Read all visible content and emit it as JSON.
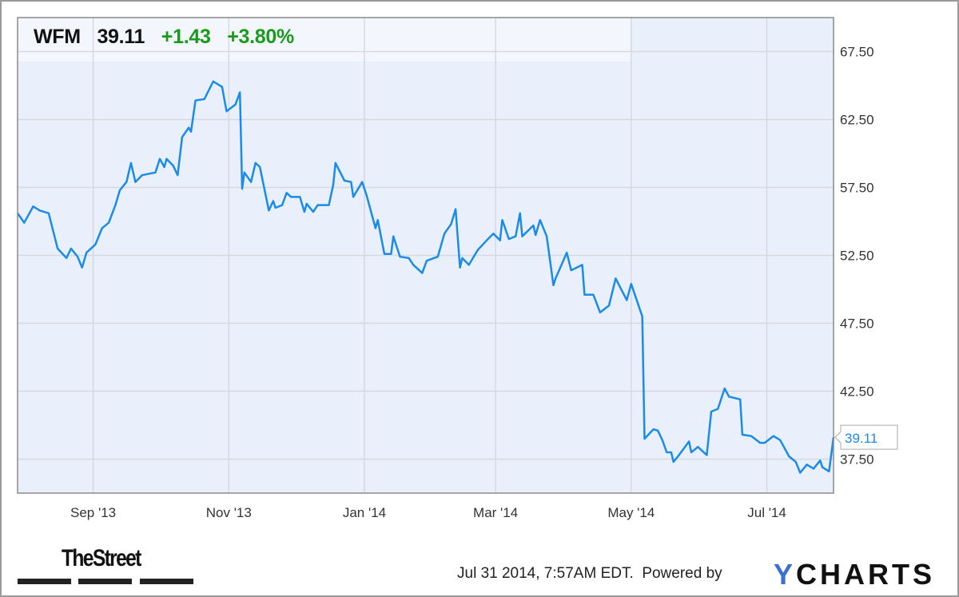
{
  "header": {
    "ticker": "WFM",
    "price": "39.11",
    "change": "+1.43",
    "change_pct": "+3.80%"
  },
  "colors": {
    "line": "#1a8be8",
    "positive": "#1a9a1a",
    "plot_bg": "#e9f0fb",
    "grid": "#d6d9de"
  },
  "chart_data": {
    "type": "line",
    "title": "",
    "xlabel": "",
    "ylabel": "",
    "xlim": [
      "2013-07-29",
      "2014-07-31"
    ],
    "ylim": [
      35,
      70
    ],
    "grid": true,
    "y_axis_side": "right",
    "y_ticks": [
      "37.50",
      "42.50",
      "47.50",
      "52.50",
      "57.50",
      "62.50",
      "67.50"
    ],
    "x_ticks": [
      {
        "date": "2013-09-01",
        "label": "Sep '13"
      },
      {
        "date": "2013-11-01",
        "label": "Nov '13"
      },
      {
        "date": "2014-01-01",
        "label": "Jan '14"
      },
      {
        "date": "2014-03-01",
        "label": "Mar '14"
      },
      {
        "date": "2014-05-01",
        "label": "May '14"
      },
      {
        "date": "2014-07-01",
        "label": "Jul '14"
      }
    ],
    "last_value_label": "39.11",
    "series": [
      {
        "points": [
          [
            "2013-07-29",
            55.6
          ],
          [
            "2013-08-01",
            54.9
          ],
          [
            "2013-08-05",
            56.1
          ],
          [
            "2013-08-08",
            55.8
          ],
          [
            "2013-08-12",
            55.6
          ],
          [
            "2013-08-16",
            53.0
          ],
          [
            "2013-08-20",
            52.3
          ],
          [
            "2013-08-22",
            53.0
          ],
          [
            "2013-08-25",
            52.4
          ],
          [
            "2013-08-27",
            51.6
          ],
          [
            "2013-08-29",
            52.7
          ],
          [
            "2013-09-02",
            53.3
          ],
          [
            "2013-09-05",
            54.5
          ],
          [
            "2013-09-08",
            54.9
          ],
          [
            "2013-09-11",
            56.2
          ],
          [
            "2013-09-13",
            57.3
          ],
          [
            "2013-09-16",
            57.9
          ],
          [
            "2013-09-18",
            59.3
          ],
          [
            "2013-09-20",
            57.9
          ],
          [
            "2013-09-23",
            58.4
          ],
          [
            "2013-09-29",
            58.6
          ],
          [
            "2013-10-01",
            59.6
          ],
          [
            "2013-10-03",
            59.0
          ],
          [
            "2013-10-04",
            59.6
          ],
          [
            "2013-10-07",
            59.1
          ],
          [
            "2013-10-09",
            58.4
          ],
          [
            "2013-10-11",
            61.2
          ],
          [
            "2013-10-14",
            61.9
          ],
          [
            "2013-10-15",
            61.6
          ],
          [
            "2013-10-17",
            63.9
          ],
          [
            "2013-10-21",
            64.0
          ],
          [
            "2013-10-25",
            65.3
          ],
          [
            "2013-10-29",
            64.9
          ],
          [
            "2013-10-31",
            63.1
          ],
          [
            "2013-11-04",
            63.6
          ],
          [
            "2013-11-06",
            64.5
          ],
          [
            "2013-11-07",
            57.4
          ],
          [
            "2013-11-08",
            58.6
          ],
          [
            "2013-11-11",
            57.9
          ],
          [
            "2013-11-13",
            59.3
          ],
          [
            "2013-11-15",
            59.0
          ],
          [
            "2013-11-19",
            55.8
          ],
          [
            "2013-11-21",
            56.5
          ],
          [
            "2013-11-22",
            56.0
          ],
          [
            "2013-11-25",
            56.2
          ],
          [
            "2013-11-27",
            57.1
          ],
          [
            "2013-11-29",
            56.8
          ],
          [
            "2013-12-03",
            56.8
          ],
          [
            "2013-12-05",
            55.7
          ],
          [
            "2013-12-06",
            56.3
          ],
          [
            "2013-12-09",
            55.7
          ],
          [
            "2013-12-11",
            56.2
          ],
          [
            "2013-12-16",
            56.2
          ],
          [
            "2013-12-18",
            57.7
          ],
          [
            "2013-12-19",
            59.3
          ],
          [
            "2013-12-23",
            58.0
          ],
          [
            "2013-12-26",
            57.9
          ],
          [
            "2013-12-27",
            56.8
          ],
          [
            "2013-12-31",
            57.9
          ],
          [
            "2014-01-02",
            56.9
          ],
          [
            "2014-01-06",
            54.5
          ],
          [
            "2014-01-07",
            55.1
          ],
          [
            "2014-01-10",
            52.6
          ],
          [
            "2014-01-13",
            52.6
          ],
          [
            "2014-01-14",
            53.9
          ],
          [
            "2014-01-17",
            52.4
          ],
          [
            "2014-01-21",
            52.3
          ],
          [
            "2014-01-23",
            51.8
          ],
          [
            "2014-01-27",
            51.2
          ],
          [
            "2014-01-29",
            52.1
          ],
          [
            "2014-02-03",
            52.4
          ],
          [
            "2014-02-06",
            54.1
          ],
          [
            "2014-02-09",
            54.8
          ],
          [
            "2014-02-11",
            55.9
          ],
          [
            "2014-02-13",
            51.6
          ],
          [
            "2014-02-14",
            52.3
          ],
          [
            "2014-02-17",
            51.8
          ],
          [
            "2014-02-21",
            52.9
          ],
          [
            "2014-02-25",
            53.6
          ],
          [
            "2014-02-28",
            54.1
          ],
          [
            "2014-03-03",
            53.6
          ],
          [
            "2014-03-04",
            55.1
          ],
          [
            "2014-03-07",
            53.7
          ],
          [
            "2014-03-10",
            53.9
          ],
          [
            "2014-03-12",
            55.6
          ],
          [
            "2014-03-13",
            53.9
          ],
          [
            "2014-03-18",
            54.7
          ],
          [
            "2014-03-19",
            54.0
          ],
          [
            "2014-03-21",
            55.1
          ],
          [
            "2014-03-24",
            53.9
          ],
          [
            "2014-03-27",
            50.3
          ],
          [
            "2014-03-28",
            50.8
          ],
          [
            "2014-04-02",
            52.7
          ],
          [
            "2014-04-04",
            51.4
          ],
          [
            "2014-04-09",
            51.8
          ],
          [
            "2014-04-10",
            49.6
          ],
          [
            "2014-04-14",
            49.6
          ],
          [
            "2014-04-17",
            48.3
          ],
          [
            "2014-04-21",
            48.8
          ],
          [
            "2014-04-24",
            50.8
          ],
          [
            "2014-04-29",
            49.2
          ],
          [
            "2014-05-01",
            50.4
          ],
          [
            "2014-05-06",
            48.0
          ],
          [
            "2014-05-07",
            39.0
          ],
          [
            "2014-05-11",
            39.7
          ],
          [
            "2014-05-13",
            39.6
          ],
          [
            "2014-05-15",
            38.9
          ],
          [
            "2014-05-17",
            38.0
          ],
          [
            "2014-05-19",
            38.0
          ],
          [
            "2014-05-20",
            37.3
          ],
          [
            "2014-05-22",
            37.7
          ],
          [
            "2014-05-27",
            38.8
          ],
          [
            "2014-05-28",
            38.0
          ],
          [
            "2014-05-31",
            38.4
          ],
          [
            "2014-06-04",
            37.8
          ],
          [
            "2014-06-06",
            41.0
          ],
          [
            "2014-06-09",
            41.2
          ],
          [
            "2014-06-12",
            42.7
          ],
          [
            "2014-06-14",
            42.1
          ],
          [
            "2014-06-19",
            41.9
          ],
          [
            "2014-06-20",
            39.3
          ],
          [
            "2014-06-24",
            39.2
          ],
          [
            "2014-06-28",
            38.7
          ],
          [
            "2014-06-30",
            38.7
          ],
          [
            "2014-07-04",
            39.2
          ],
          [
            "2014-07-07",
            38.9
          ],
          [
            "2014-07-09",
            38.3
          ],
          [
            "2014-07-11",
            37.7
          ],
          [
            "2014-07-14",
            37.3
          ],
          [
            "2014-07-16",
            36.5
          ],
          [
            "2014-07-19",
            37.1
          ],
          [
            "2014-07-22",
            36.8
          ],
          [
            "2014-07-25",
            37.4
          ],
          [
            "2014-07-26",
            36.9
          ],
          [
            "2014-07-29",
            36.6
          ],
          [
            "2014-07-31",
            39.11
          ]
        ]
      }
    ]
  },
  "footer": {
    "timestamp": "Jul 31 2014, 7:57AM EDT.",
    "powered_by": "Powered by",
    "ycharts_logo": "YCHARTS",
    "thestreet_logo": "TheStreet"
  }
}
